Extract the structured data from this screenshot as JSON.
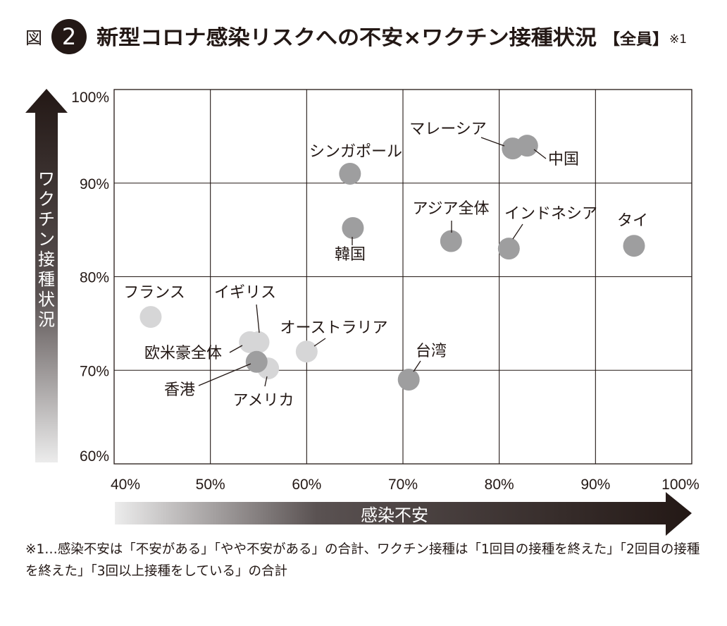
{
  "header": {
    "fig_label": "図",
    "fig_number": "2",
    "title": "新型コロナ感染リスクへの不安×ワクチン接種状況",
    "bracket": "【全員】",
    "note_mark": "※1"
  },
  "footnote": "※1…感染不安は「不安がある」「やや不安がある」の合計、ワクチン接種は「1回目の接種を終えた」「2回目の接種を終えた」「3回以上接種をしている」の合計",
  "colors": {
    "asia_point": "#9e9e9f",
    "west_point": "#d6d6d7",
    "ink": "#231815"
  },
  "chart_data": {
    "type": "scatter",
    "xlabel": "感染不安",
    "ylabel": "ワクチン接種状況",
    "xlim": [
      40,
      100
    ],
    "ylim": [
      60,
      100
    ],
    "x_ticks": [
      "40%",
      "50%",
      "60%",
      "70%",
      "80%",
      "90%",
      "100%"
    ],
    "y_ticks": [
      "100%",
      "90%",
      "80%",
      "70%",
      "60%"
    ],
    "grid": true,
    "points": [
      {
        "label": "シンガポール",
        "x": 64.5,
        "y": 91.0,
        "group": "asia"
      },
      {
        "label": "マレーシア",
        "x": 81.4,
        "y": 93.7,
        "group": "asia"
      },
      {
        "label": "中国",
        "x": 82.9,
        "y": 94.0,
        "group": "asia"
      },
      {
        "label": "韓国",
        "x": 64.8,
        "y": 85.2,
        "group": "asia"
      },
      {
        "label": "アジア全体",
        "x": 75.0,
        "y": 83.8,
        "group": "asia"
      },
      {
        "label": "インドネシア",
        "x": 81.0,
        "y": 83.0,
        "group": "asia"
      },
      {
        "label": "タイ",
        "x": 94.0,
        "y": 83.3,
        "group": "asia"
      },
      {
        "label": "台湾",
        "x": 70.6,
        "y": 69.0,
        "group": "asia"
      },
      {
        "label": "香港",
        "x": 54.8,
        "y": 70.9,
        "group": "asia"
      },
      {
        "label": "フランス",
        "x": 43.8,
        "y": 75.7,
        "group": "west"
      },
      {
        "label": "イギリス",
        "x": 55.0,
        "y": 73.0,
        "group": "west"
      },
      {
        "label": "欧米豪全体",
        "x": 54.1,
        "y": 73.0,
        "group": "west"
      },
      {
        "label": "オーストラリア",
        "x": 60.0,
        "y": 72.0,
        "group": "west"
      },
      {
        "label": "アメリカ",
        "x": 56.0,
        "y": 70.2,
        "group": "west"
      }
    ]
  }
}
